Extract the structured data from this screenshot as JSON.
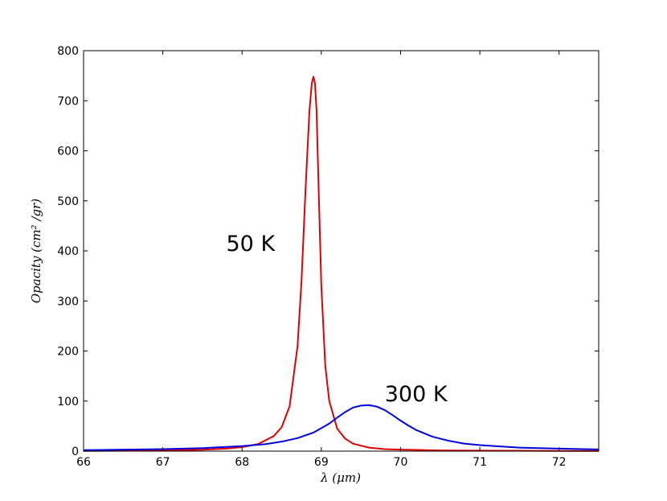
{
  "chart_data": {
    "type": "line",
    "title": "",
    "xlabel": "λ (μm)",
    "ylabel": "Opacity (cm² /gr)",
    "xlim": [
      66,
      72.5
    ],
    "ylim": [
      0,
      800
    ],
    "xticks": [
      "66",
      "67",
      "68",
      "69",
      "70",
      "71",
      "72"
    ],
    "yticks": [
      "0",
      "100",
      "200",
      "300",
      "400",
      "500",
      "600",
      "700",
      "800"
    ],
    "grid": false,
    "legend": "none",
    "series": [
      {
        "color": "#e00000",
        "x": [
          66.0,
          66.5,
          67.0,
          67.5,
          67.8,
          68.0,
          68.2,
          68.4,
          68.5,
          68.6,
          68.7,
          68.75,
          68.8,
          68.85,
          68.88,
          68.9,
          68.92,
          68.94,
          68.96,
          69.0,
          69.05,
          69.1,
          69.2,
          69.3,
          69.4,
          69.6,
          69.8,
          70.0,
          70.5,
          71.0,
          71.5,
          72.0,
          72.5
        ],
        "y": [
          0.5,
          0.8,
          1.3,
          2.8,
          5,
          8,
          14,
          30,
          48,
          90,
          210,
          340,
          520,
          680,
          735,
          748,
          735,
          680,
          560,
          330,
          170,
          100,
          45,
          25,
          15,
          7,
          4,
          3,
          1.5,
          1,
          0.7,
          0.5,
          0.4
        ]
      },
      {
        "color": "#0000e0",
        "x": [
          66.0,
          66.5,
          67.0,
          67.5,
          68.0,
          68.3,
          68.5,
          68.7,
          68.9,
          69.1,
          69.2,
          69.3,
          69.4,
          69.5,
          69.6,
          69.7,
          69.8,
          69.9,
          70.0,
          70.1,
          70.2,
          70.4,
          70.6,
          70.8,
          71.0,
          71.5,
          72.0,
          72.5
        ],
        "y": [
          2,
          3,
          4,
          6,
          10,
          14,
          19,
          26,
          37,
          55,
          67,
          78,
          87,
          91,
          92,
          89,
          82,
          72,
          61,
          51,
          42,
          29,
          21,
          15,
          12,
          7,
          5,
          3.5
        ]
      }
    ],
    "annotations": [
      {
        "text": "50 K",
        "x": 67.8,
        "y": 400
      },
      {
        "text": "300 K",
        "x": 69.8,
        "y": 100
      }
    ]
  }
}
